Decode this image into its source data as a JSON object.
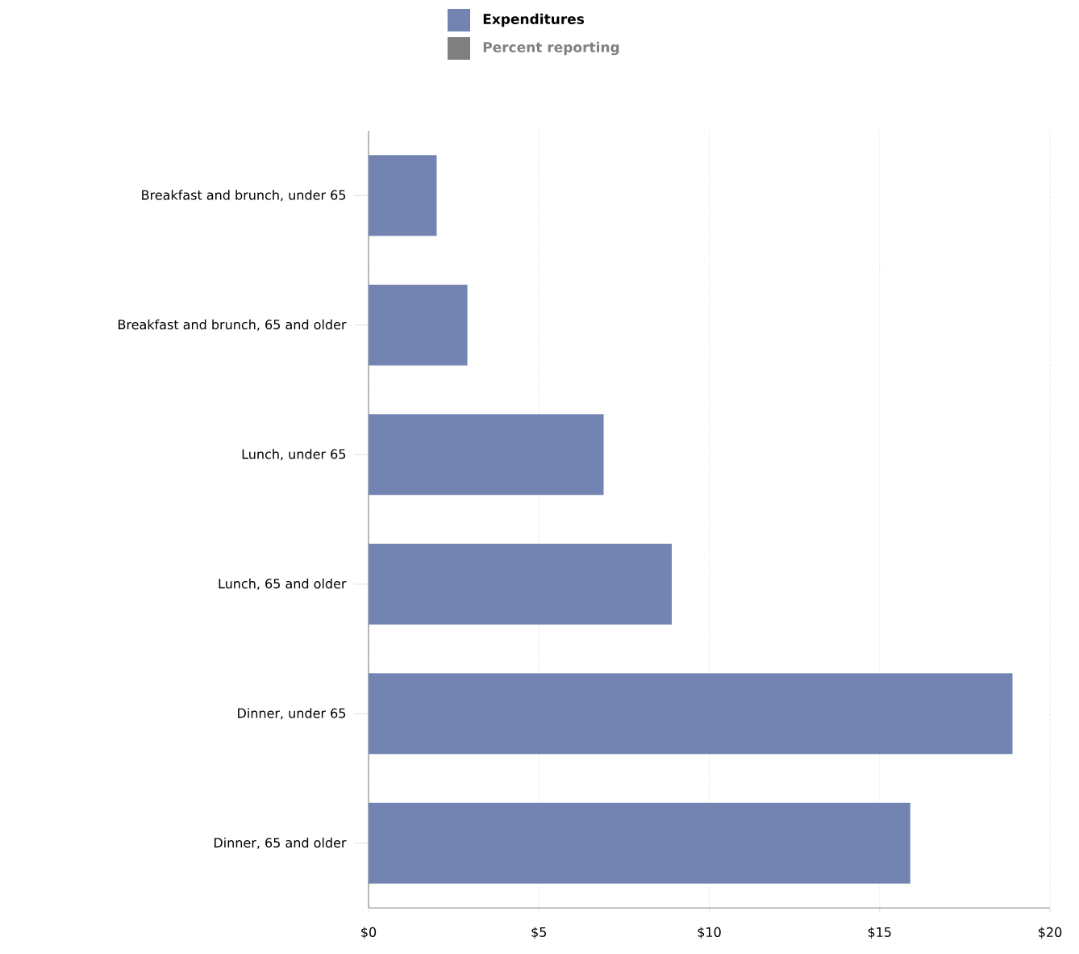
{
  "chart_data": {
    "type": "bar",
    "orientation": "horizontal",
    "categories": [
      "Breakfast and brunch, under 65",
      "Breakfast and brunch, 65 and older",
      "Lunch, under 65",
      "Lunch, 65 and older",
      "Dinner, under 65",
      "Dinner, 65 and older"
    ],
    "series": [
      {
        "name": "Expenditures",
        "color": "#7384b2",
        "values": [
          2.0,
          2.9,
          6.9,
          8.9,
          18.9,
          15.9
        ]
      },
      {
        "name": "Percent reporting",
        "color": "#808080",
        "values": [
          null,
          null,
          null,
          null,
          null,
          null
        ]
      }
    ],
    "xlim": [
      0,
      20
    ],
    "xticks": [
      {
        "value": 0,
        "label": "$0"
      },
      {
        "value": 5,
        "label": "$5"
      },
      {
        "value": 10,
        "label": "$10"
      },
      {
        "value": 15,
        "label": "$15"
      },
      {
        "value": 20,
        "label": "$20"
      }
    ],
    "grid": "x",
    "legend": "top"
  }
}
